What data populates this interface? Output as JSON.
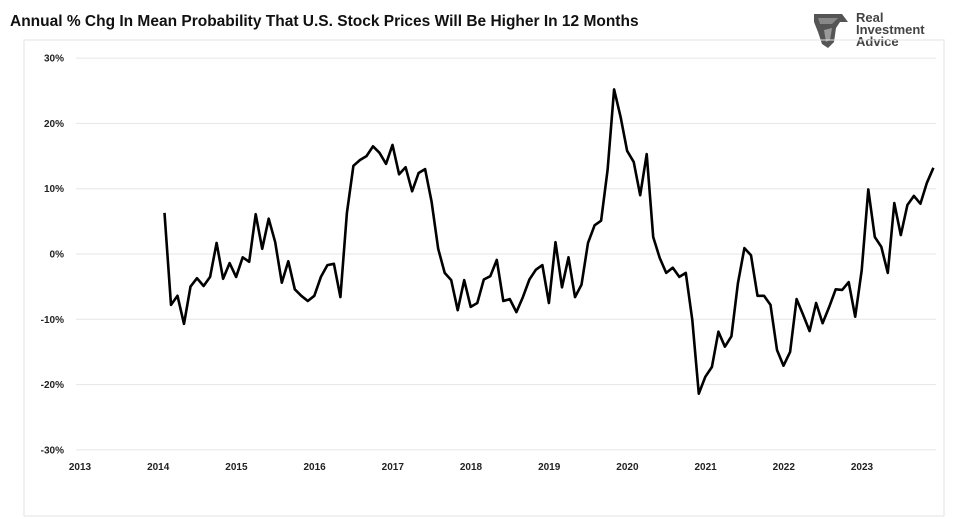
{
  "logo": {
    "lines": [
      "Real",
      "Investment",
      "Advice"
    ]
  },
  "chart_data": {
    "type": "line",
    "title": "Annual % Chg In Mean Probability That U.S. Stock Prices Will Be Higher In 12 Months",
    "xlabel": "",
    "ylabel": "",
    "xlim": [
      2013,
      2024
    ],
    "ylim": [
      -30,
      30
    ],
    "x_ticks": [
      "2013",
      "2014",
      "2015",
      "2016",
      "2017",
      "2018",
      "2019",
      "2020",
      "2021",
      "2022",
      "2023"
    ],
    "y_ticks": [
      "30%",
      "20%",
      "10%",
      "0%",
      "-10%",
      "-20%",
      "-30%"
    ],
    "y_tick_values": [
      30,
      20,
      10,
      0,
      -10,
      -20,
      -30
    ],
    "grid": "horizontal",
    "line_color": "#000000",
    "start": "2014-01",
    "frequency": "monthly",
    "values": [
      6.3,
      -7.8,
      -6.4,
      -10.7,
      -5.0,
      -3.7,
      -4.9,
      -3.5,
      1.7,
      -3.8,
      -1.4,
      -3.5,
      -0.5,
      -1.2,
      6.1,
      0.8,
      5.4,
      1.8,
      -4.4,
      -1.1,
      -5.4,
      -6.4,
      -7.2,
      -6.4,
      -3.5,
      -1.7,
      -1.5,
      -6.6,
      6.3,
      13.5,
      14.4,
      15.0,
      16.5,
      15.5,
      13.8,
      16.7,
      12.2,
      13.3,
      9.6,
      12.4,
      13.0,
      8.0,
      0.8,
      -2.9,
      -4.0,
      -8.6,
      -4.0,
      -8.1,
      -7.5,
      -3.9,
      -3.4,
      -0.9,
      -7.2,
      -6.9,
      -8.9,
      -6.6,
      -3.9,
      -2.4,
      -1.7,
      -7.5,
      1.8,
      -5.1,
      -0.5,
      -6.6,
      -4.7,
      1.7,
      4.4,
      5.1,
      12.9,
      25.2,
      21.0,
      15.8,
      14.1,
      9.0,
      15.3,
      2.6,
      -0.6,
      -2.9,
      -2.1,
      -3.5,
      -2.9,
      -10.1,
      -21.4,
      -18.8,
      -17.3,
      -11.9,
      -14.2,
      -12.6,
      -4.5,
      0.9,
      -0.2,
      -6.4,
      -6.4,
      -7.8,
      -14.7,
      -17.1,
      -15.0,
      -6.9,
      -9.3,
      -11.8,
      -7.5,
      -10.6,
      -8.1,
      -5.4,
      -5.5,
      -4.3,
      -9.6,
      -2.5,
      9.9,
      2.6,
      1.1,
      -2.9,
      7.8,
      2.9,
      7.5,
      8.9,
      7.7,
      10.9,
      13.2
    ]
  }
}
